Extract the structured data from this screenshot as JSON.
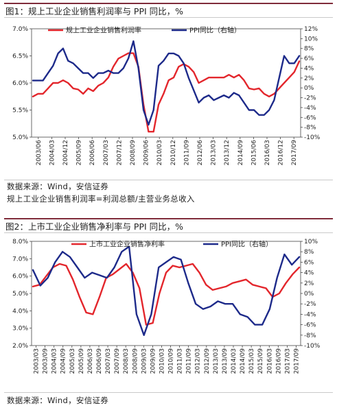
{
  "charts": {
    "c1": {
      "title": "图1：规上工业企业销售利润率与 PPI 同比，%",
      "source": "数据来源：Wind，安信证券",
      "formula": "规上工业企业销售利润率=利润总额/主营业务总收入"
    },
    "c2": {
      "title": "图2：上市工业企业销售净利率与 PPI 同比，%",
      "source": "数据来源：Wind，安信证券"
    }
  },
  "colors": {
    "profit": "#e3262c",
    "ppi": "#1d2a8a",
    "title_rule": "#7f2b3a"
  },
  "chart_data": [
    {
      "type": "line",
      "title": "规上工业企业销售利润率与 PPI 同比，%",
      "x_tick_labels": [
        "2003/06",
        "2004/03",
        "2004/12",
        "2005/09",
        "2006/06",
        "2007/03",
        "2007/12",
        "2008/09",
        "2009/06",
        "2010/03",
        "2010/12",
        "2011/09",
        "2012/06",
        "2013/03",
        "2013/12",
        "2014/09",
        "2015/06",
        "2016/03",
        "2016/12",
        "2017/09"
      ],
      "y_left": {
        "ticks": [
          "5.0%",
          "5.5%",
          "6.0%",
          "6.5%",
          "7.0%"
        ],
        "min": 5.0,
        "max": 7.0
      },
      "y_right": {
        "ticks": [
          "-10%",
          "-8%",
          "-6%",
          "-4%",
          "-2%",
          "0%",
          "2%",
          "4%",
          "6%",
          "8%",
          "10%",
          "12%"
        ],
        "min": -10,
        "max": 12
      },
      "series": [
        {
          "name": "规上工业企业销售利润率",
          "axis": "left",
          "color": "#e3262c",
          "values": [
            5.75,
            5.8,
            5.8,
            5.9,
            6.0,
            6.0,
            6.05,
            6.0,
            5.9,
            5.88,
            5.8,
            5.9,
            5.85,
            5.95,
            6.0,
            6.1,
            6.3,
            6.45,
            6.5,
            6.55,
            6.55,
            6.3,
            5.6,
            5.1,
            5.1,
            5.6,
            5.8,
            6.05,
            6.1,
            6.3,
            6.35,
            6.3,
            6.2,
            6.0,
            6.05,
            6.1,
            6.1,
            6.1,
            6.1,
            6.15,
            6.1,
            6.15,
            6.05,
            5.9,
            5.88,
            5.9,
            5.8,
            5.75,
            5.8,
            5.9,
            6.0,
            6.1,
            6.2,
            6.4
          ]
        },
        {
          "name": "PPI同比（右轴）",
          "axis": "right",
          "color": "#1d2a8a",
          "values": [
            1.5,
            1.5,
            1.5,
            3.0,
            4.5,
            7.0,
            8.0,
            5.5,
            5.0,
            4.0,
            3.0,
            3.0,
            2.0,
            3.0,
            3.0,
            3.5,
            3.0,
            3.0,
            4.0,
            6.0,
            9.5,
            4.0,
            -4.5,
            -7.5,
            -4.5,
            4.5,
            5.5,
            7.0,
            7.0,
            6.5,
            5.0,
            2.0,
            -0.5,
            -3.0,
            -2.0,
            -1.5,
            -2.5,
            -2.0,
            -1.5,
            -2.0,
            -1.0,
            -1.5,
            -3.0,
            -4.5,
            -4.5,
            -5.5,
            -5.5,
            -4.5,
            -2.5,
            2.0,
            6.5,
            5.0,
            5.0,
            6.5
          ]
        }
      ]
    },
    {
      "type": "line",
      "title": "上市工业企业销售净利率与 PPI 同比，%",
      "x_tick_labels": [
        "2003/03",
        "2003/09",
        "2004/03",
        "2004/09",
        "2005/03",
        "2005/09",
        "2006/03",
        "2006/09",
        "2007/03",
        "2007/09",
        "2008/03",
        "2008/09",
        "2009/03",
        "2009/09",
        "2010/03",
        "2010/09",
        "2011/03",
        "2011/09",
        "2012/03",
        "2012/09",
        "2013/03",
        "2013/09",
        "2014/03",
        "2014/09",
        "2015/03",
        "2015/09",
        "2016/03",
        "2016/09",
        "2017/03",
        "2017/09"
      ],
      "y_left": {
        "ticks": [
          "2.0%",
          "3.0%",
          "4.0%",
          "5.0%",
          "6.0%",
          "7.0%",
          "8.0%"
        ],
        "min": 2.0,
        "max": 8.0
      },
      "y_right": {
        "ticks": [
          "-10%",
          "-8%",
          "-6%",
          "-4%",
          "-2%",
          "0%",
          "2%",
          "4%",
          "6%",
          "8%",
          "10%"
        ],
        "min": -10,
        "max": 10
      },
      "series": [
        {
          "name": "上市工业企业销售净利率",
          "axis": "left",
          "color": "#e3262c",
          "values": [
            5.4,
            5.5,
            6.0,
            6.5,
            6.7,
            6.6,
            5.8,
            4.8,
            3.9,
            3.8,
            4.8,
            5.9,
            6.1,
            6.4,
            6.7,
            6.2,
            5.3,
            3.2,
            3.3,
            5.0,
            6.2,
            6.6,
            6.5,
            6.6,
            6.7,
            6.2,
            5.5,
            5.2,
            5.3,
            5.4,
            5.6,
            5.7,
            5.8,
            5.5,
            5.4,
            5.3,
            4.8,
            5.0,
            5.6,
            6.1,
            6.5
          ]
        },
        {
          "name": "PPI同比（右轴）",
          "axis": "right",
          "color": "#1d2a8a",
          "values": [
            4.5,
            1.5,
            3.0,
            6.0,
            8.0,
            7.0,
            5.0,
            3.0,
            4.0,
            3.5,
            3.0,
            5.0,
            8.0,
            9.0,
            -4.0,
            -8.0,
            -4.0,
            5.0,
            6.0,
            7.0,
            6.5,
            2.0,
            -2.0,
            -3.0,
            -2.5,
            -1.5,
            -2.0,
            -2.0,
            -4.0,
            -4.5,
            -6.0,
            -6.0,
            -3.0,
            3.0,
            7.5,
            5.5,
            7.0
          ]
        }
      ]
    }
  ]
}
